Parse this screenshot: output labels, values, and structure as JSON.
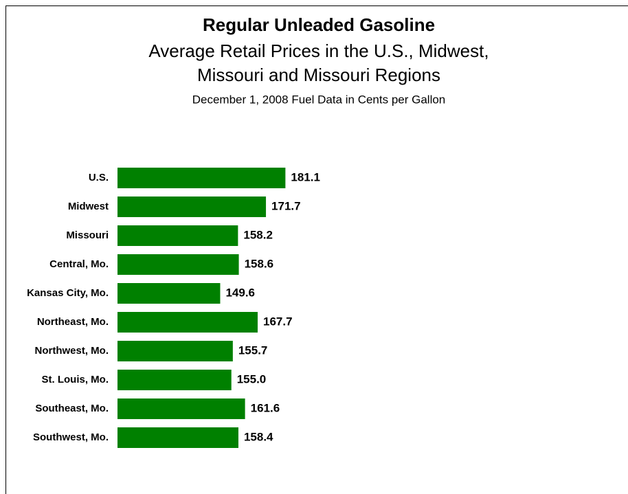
{
  "chart_data": {
    "type": "hbar",
    "title": "Regular Unleaded Gasoline",
    "subtitle": [
      "Average Retail Prices in the U.S., Midwest,",
      "Missouri and Missouri Regions"
    ],
    "note": "December 1, 2008 Fuel Data in Cents per Gallon",
    "categories": [
      "U.S.",
      "Midwest",
      "Missouri",
      "Central, Mo.",
      "Kansas City, Mo.",
      "Northeast, Mo.",
      "Northwest, Mo.",
      "St. Louis, Mo.",
      "Southeast, Mo.",
      "Southwest, Mo."
    ],
    "values": [
      181.1,
      171.7,
      158.2,
      158.6,
      149.6,
      167.7,
      155.7,
      155.0,
      161.6,
      158.4
    ],
    "value_labels": [
      "181.1",
      "171.7",
      "158.2",
      "158.6",
      "149.6",
      "167.7",
      "155.7",
      "155.0",
      "161.6",
      "158.4"
    ],
    "color": "#008000",
    "xlim": [
      100,
      250
    ]
  }
}
